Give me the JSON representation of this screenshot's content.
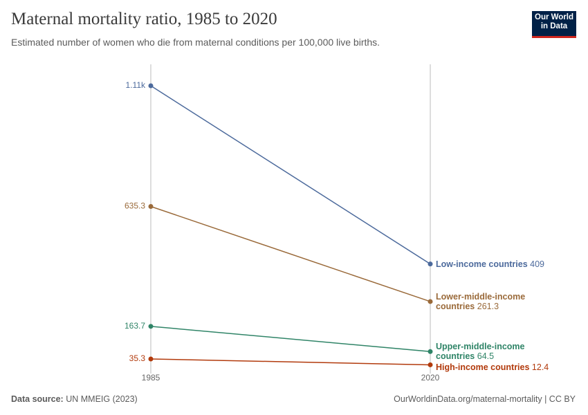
{
  "chart_data": {
    "type": "slope",
    "title": "Maternal mortality ratio, 1985 to 2020",
    "subtitle": "Estimated number of women who die from maternal conditions per 100,000 live births.",
    "categories": [
      "1985",
      "2020"
    ],
    "ylim": [
      0,
      1110
    ],
    "series": [
      {
        "name": "Low-income countries",
        "color": "#4c6a9c",
        "values": [
          1110,
          409
        ],
        "value_labels": [
          "1.11k",
          "409"
        ]
      },
      {
        "name": "Lower-middle-income countries",
        "color": "#9a6a3a",
        "values": [
          635.3,
          261.3
        ]
      },
      {
        "name": "Upper-middle-income countries",
        "color": "#2f8467",
        "values": [
          163.7,
          64.5
        ]
      },
      {
        "name": "High-income countries",
        "color": "#b23a0c",
        "values": [
          35.3,
          12.4
        ]
      }
    ],
    "source_label": "Data source:",
    "source": "UN MMEIG (2023)",
    "footer_right": "OurWorldinData.org/maternal-mortality | CC BY",
    "logo": "Our World in Data"
  }
}
